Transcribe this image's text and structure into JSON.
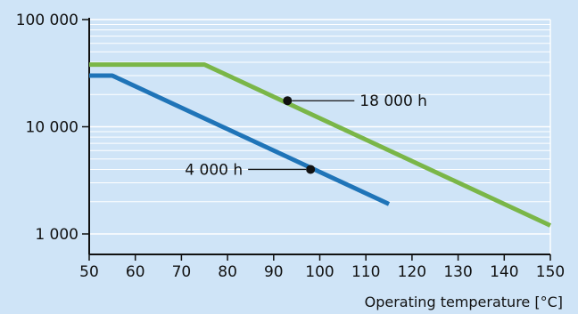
{
  "chart_data": {
    "type": "line",
    "title": "",
    "xlabel": "Operating temperature [°C]",
    "ylabel": "",
    "xlim": [
      50,
      150
    ],
    "ylim": [
      1000,
      100000
    ],
    "yscale": "log",
    "grid": true,
    "x_ticks": [
      "50",
      "60",
      "70",
      "80",
      "90",
      "100",
      "110",
      "120",
      "130",
      "140",
      "150"
    ],
    "y_ticks": [
      "1 000",
      "10 000",
      "100 000"
    ],
    "series": [
      {
        "color": "#7ab648",
        "points": [
          {
            "x": 50,
            "y": 38000
          },
          {
            "x": 75,
            "y": 38000
          },
          {
            "x": 150,
            "y": 1200
          }
        ]
      },
      {
        "color": "#1f74b8",
        "points": [
          {
            "x": 50,
            "y": 30000
          },
          {
            "x": 55,
            "y": 30000
          },
          {
            "x": 115,
            "y": 1900
          }
        ]
      }
    ],
    "annotations": [
      {
        "text": "18 000 h",
        "x": 93,
        "y": 17500
      },
      {
        "text": "4 000 h",
        "x": 98,
        "y": 4000
      }
    ]
  }
}
